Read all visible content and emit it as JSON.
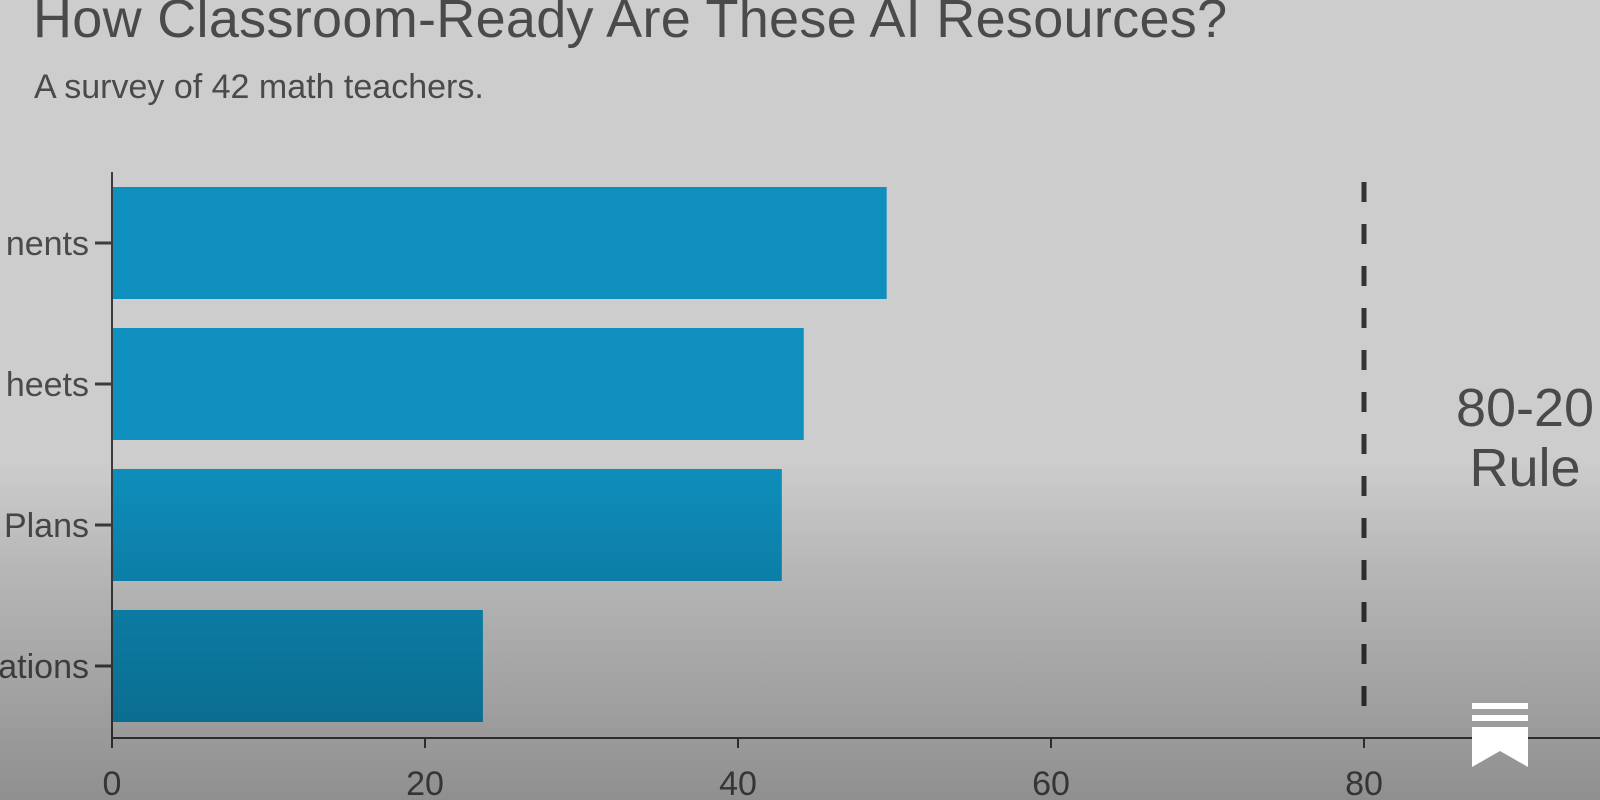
{
  "title": "How Classroom-Ready Are These AI Resources?",
  "subtitle": "A survey of 42 math teachers.",
  "reference_line": {
    "value": 80,
    "label_line1": "80-20",
    "label_line2": "Rule"
  },
  "colors": {
    "bar": "#0e8fbd",
    "axis": "#3c3c3c",
    "text": "#4a4a4a",
    "background": "#cdcdcd"
  },
  "icons": {
    "corner": "bookmark-icon"
  },
  "chart_data": {
    "type": "bar",
    "orientation": "horizontal",
    "categories": [
      "nents",
      "heets",
      "Plans",
      "ations"
    ],
    "values": [
      49.5,
      44.2,
      42.8,
      23.7
    ],
    "xticks": [
      0,
      20,
      40,
      60,
      80
    ],
    "xlim": [
      0,
      100
    ],
    "grid": false
  }
}
